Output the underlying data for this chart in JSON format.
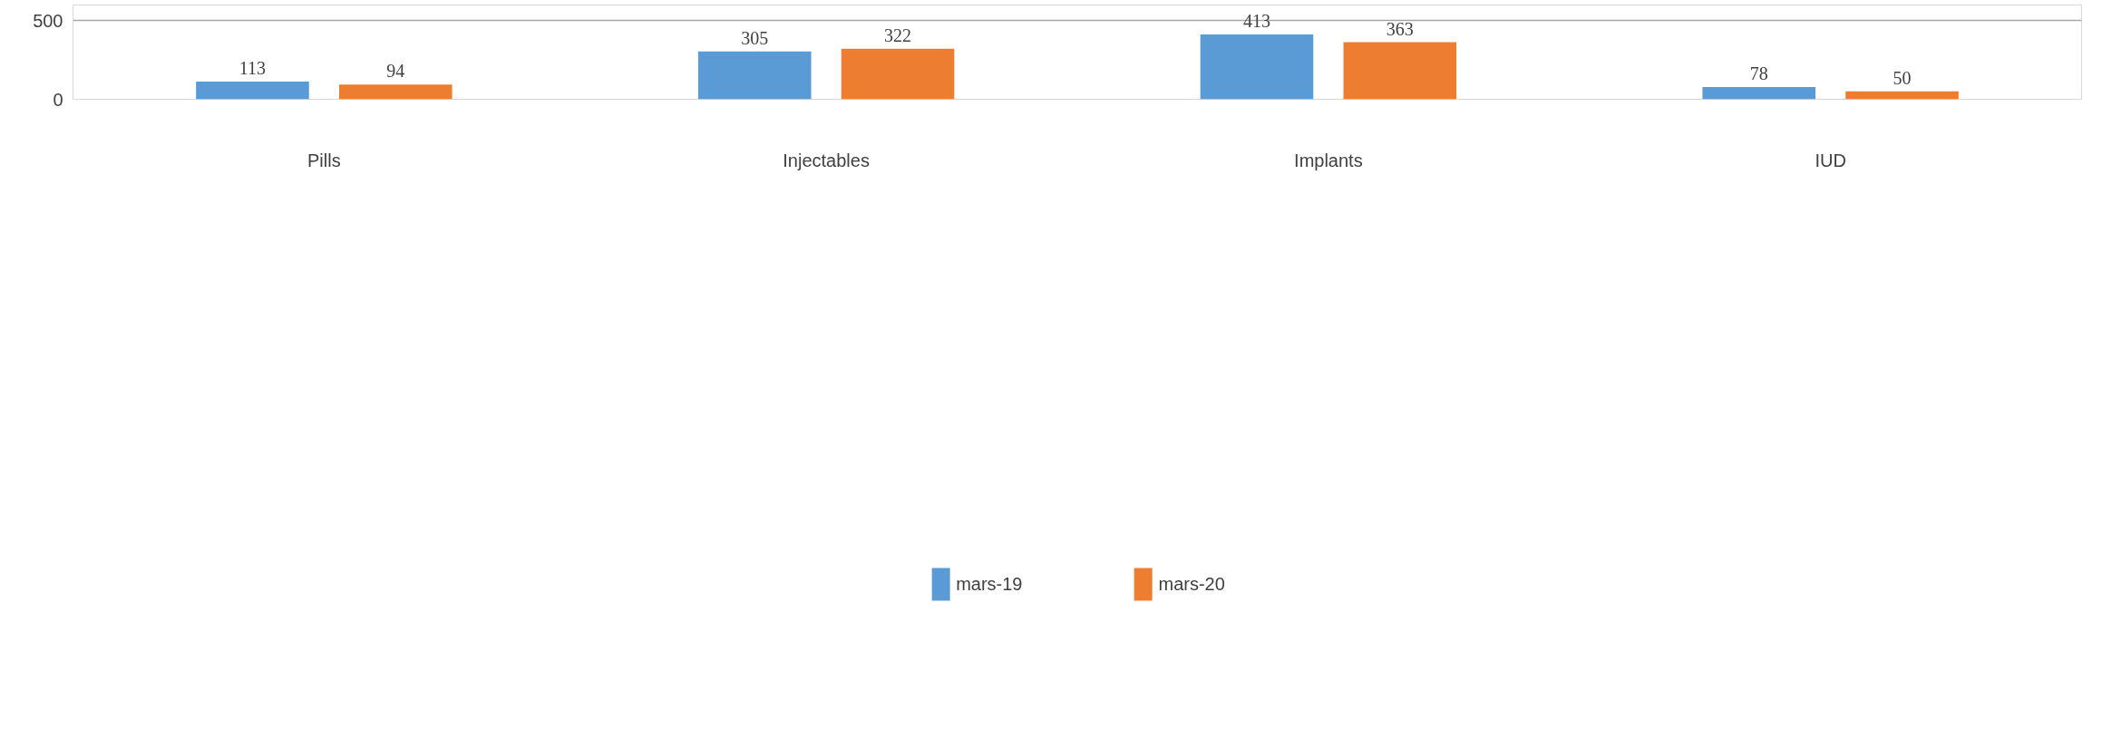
{
  "chart_data": {
    "type": "bar",
    "categories": [
      "Pills",
      "Injectables",
      "Implants",
      "IUD"
    ],
    "series": [
      {
        "name": "mars-19",
        "color": "#5b9bd5",
        "values": [
          113,
          305,
          413,
          78
        ]
      },
      {
        "name": "mars-20",
        "color": "#ed7d31",
        "values": [
          94,
          322,
          363,
          50
        ]
      }
    ],
    "ylim": [
      0,
      600
    ],
    "yticks": [
      0,
      500
    ],
    "grid": "y",
    "data_labels": true,
    "legend": "bottom"
  }
}
